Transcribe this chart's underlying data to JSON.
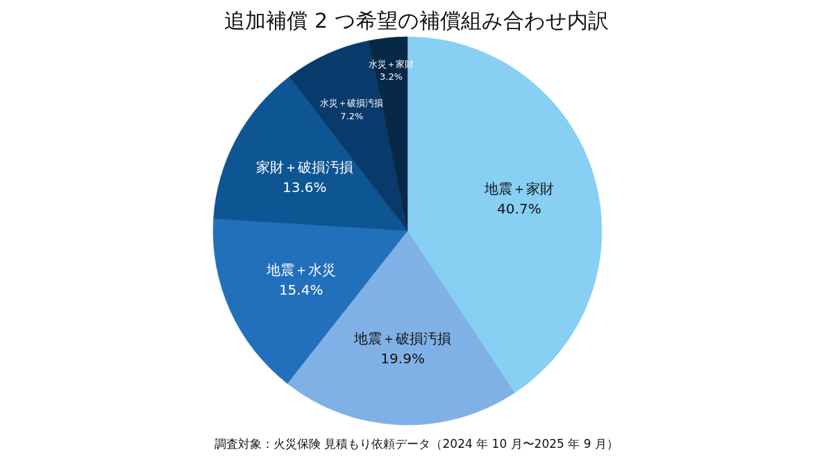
{
  "chart_data": {
    "type": "pie",
    "title": "追加補償 2 つ希望の補償組み合わせ内訳",
    "categories": [
      "地震＋家財",
      "地震＋破損汚損",
      "地震＋水災",
      "家財＋破損汚損",
      "水災＋破損汚損",
      "水災＋家財"
    ],
    "values": [
      40.7,
      19.9,
      15.4,
      13.6,
      7.2,
      3.2
    ],
    "colors": [
      "#87cff3",
      "#80b1e6",
      "#2270bb",
      "#0e5594",
      "#083a6b",
      "#082847"
    ],
    "value_labels": [
      "40.7%",
      "19.9%",
      "15.4%",
      "13.6%",
      "7.2%",
      "3.2%"
    ],
    "annotations": [
      "調査対象：火災保険 見積もり依頼データ（2024 年 10 月〜2025 年 9 月）"
    ]
  }
}
